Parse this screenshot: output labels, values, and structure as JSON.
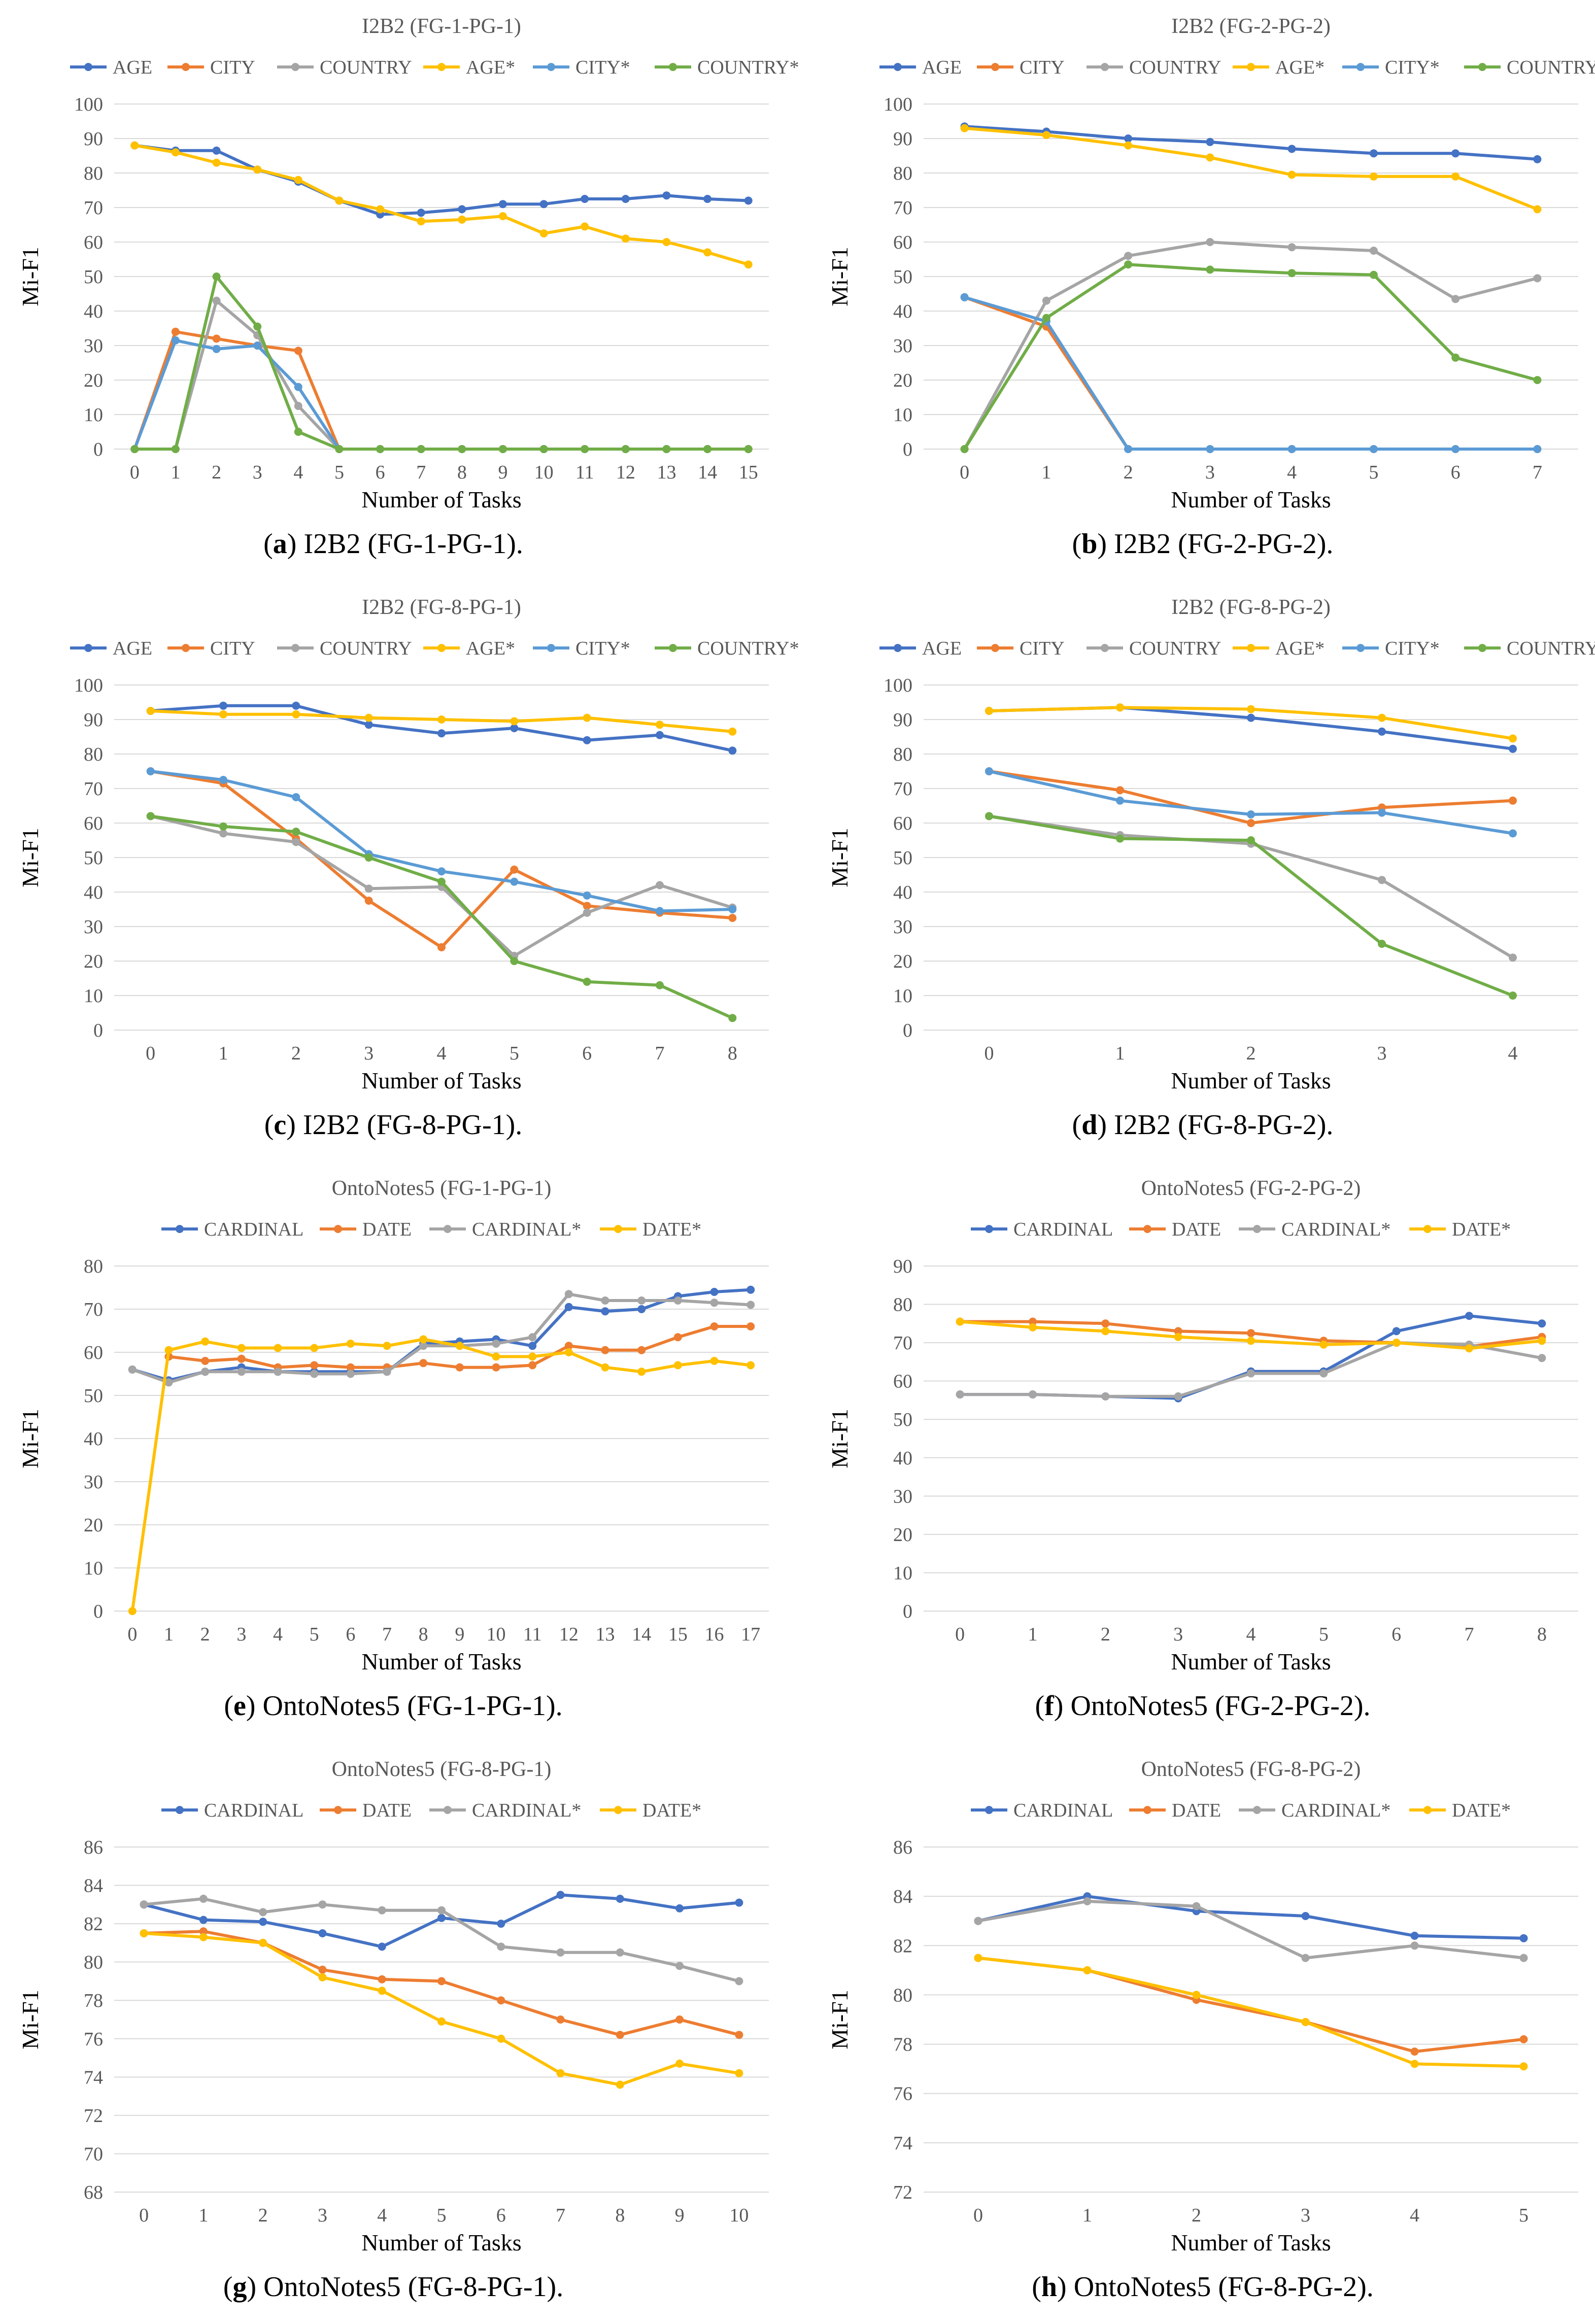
{
  "chart_data": [
    {
      "id": "a",
      "type": "line",
      "title": "I2B2 (FG-1-PG-1)",
      "caption_letter": "a",
      "caption_text": "I2B2 (FG-1-PG-1).",
      "xlabel": "Number of Tasks",
      "ylabel": "Mi-F1",
      "categories": [
        "0",
        "1",
        "2",
        "3",
        "4",
        "5",
        "6",
        "7",
        "8",
        "9",
        "10",
        "11",
        "12",
        "13",
        "14",
        "15"
      ],
      "ylim": [
        0,
        100
      ],
      "yticks": [
        0,
        10,
        20,
        30,
        40,
        50,
        60,
        70,
        80,
        90,
        100
      ],
      "legend_position": "top",
      "series": [
        {
          "name": "AGE",
          "color": "#4472c4",
          "values": [
            88,
            86.5,
            86.5,
            81,
            77.5,
            72,
            68,
            68.5,
            69.5,
            71,
            71,
            72.5,
            72.5,
            73.5,
            72.5,
            72
          ]
        },
        {
          "name": "CITY",
          "color": "#ed7d31",
          "values": [
            0,
            34,
            32,
            30,
            28.5,
            0,
            0,
            0,
            0,
            0,
            0,
            0,
            0,
            0,
            0,
            0
          ]
        },
        {
          "name": "COUNTRY",
          "color": "#a5a5a5",
          "values": [
            0,
            0,
            43,
            33,
            12.5,
            0,
            0,
            0,
            0,
            0,
            0,
            0,
            0,
            0,
            0,
            0
          ]
        },
        {
          "name": "AGE*",
          "color": "#ffc000",
          "values": [
            88,
            86,
            83,
            81,
            78,
            72,
            69.5,
            66,
            66.5,
            67.5,
            62.5,
            64.5,
            61,
            60,
            57,
            53.5
          ]
        },
        {
          "name": "CITY*",
          "color": "#5b9bd5",
          "values": [
            0,
            31.5,
            29,
            30,
            18,
            0,
            0,
            0,
            0,
            0,
            0,
            0,
            0,
            0,
            0,
            0
          ]
        },
        {
          "name": "COUNTRY*",
          "color": "#70ad47",
          "values": [
            0,
            0,
            50,
            35.5,
            5,
            0,
            0,
            0,
            0,
            0,
            0,
            0,
            0,
            0,
            0,
            0
          ]
        }
      ]
    },
    {
      "id": "b",
      "type": "line",
      "title": "I2B2 (FG-2-PG-2)",
      "caption_letter": "b",
      "caption_text": "I2B2 (FG-2-PG-2).",
      "xlabel": "Number of Tasks",
      "ylabel": "Mi-F1",
      "categories": [
        "0",
        "1",
        "2",
        "3",
        "4",
        "5",
        "6",
        "7"
      ],
      "ylim": [
        0,
        100
      ],
      "yticks": [
        0,
        10,
        20,
        30,
        40,
        50,
        60,
        70,
        80,
        90,
        100
      ],
      "legend_position": "top",
      "series": [
        {
          "name": "AGE",
          "color": "#4472c4",
          "values": [
            93.5,
            92,
            90,
            89,
            87,
            85.7,
            85.7,
            84
          ]
        },
        {
          "name": "CITY",
          "color": "#ed7d31",
          "values": [
            44,
            35.5,
            0,
            0,
            0,
            0,
            0,
            0
          ]
        },
        {
          "name": "COUNTRY",
          "color": "#a5a5a5",
          "values": [
            0,
            43,
            56,
            60,
            58.5,
            57.5,
            43.5,
            49.5
          ]
        },
        {
          "name": "AGE*",
          "color": "#ffc000",
          "values": [
            93,
            91,
            88,
            84.5,
            79.5,
            79,
            79,
            69.5
          ]
        },
        {
          "name": "CITY*",
          "color": "#5b9bd5",
          "values": [
            44,
            37,
            0,
            0,
            0,
            0,
            0,
            0
          ]
        },
        {
          "name": "COUNTRY*",
          "color": "#70ad47",
          "values": [
            0,
            38,
            53.5,
            52,
            51,
            50.5,
            26.5,
            20
          ]
        }
      ]
    },
    {
      "id": "c",
      "type": "line",
      "title": "I2B2 (FG-8-PG-1)",
      "caption_letter": "c",
      "caption_text": "I2B2 (FG-8-PG-1).",
      "xlabel": "Number of Tasks",
      "ylabel": "Mi-F1",
      "categories": [
        "0",
        "1",
        "2",
        "3",
        "4",
        "5",
        "6",
        "7",
        "8"
      ],
      "ylim": [
        0,
        100
      ],
      "yticks": [
        0,
        10,
        20,
        30,
        40,
        50,
        60,
        70,
        80,
        90,
        100
      ],
      "legend_position": "top",
      "series": [
        {
          "name": "AGE",
          "color": "#4472c4",
          "values": [
            92.5,
            94,
            94,
            88.5,
            86,
            87.5,
            84,
            85.5,
            81
          ]
        },
        {
          "name": "CITY",
          "color": "#ed7d31",
          "values": [
            75,
            71.5,
            55.5,
            37.5,
            24,
            46.5,
            36,
            34,
            32.5
          ]
        },
        {
          "name": "COUNTRY",
          "color": "#a5a5a5",
          "values": [
            62,
            57,
            54.5,
            41,
            41.5,
            21.5,
            34,
            42,
            35.5
          ]
        },
        {
          "name": "AGE*",
          "color": "#ffc000",
          "values": [
            92.5,
            91.5,
            91.5,
            90.5,
            90,
            89.5,
            90.5,
            88.5,
            86.5
          ]
        },
        {
          "name": "CITY*",
          "color": "#5b9bd5",
          "values": [
            75,
            72.5,
            67.5,
            51,
            46,
            43,
            39,
            34.5,
            35
          ]
        },
        {
          "name": "COUNTRY*",
          "color": "#70ad47",
          "values": [
            62,
            59,
            57.5,
            50,
            43,
            20,
            14,
            13,
            3.5
          ]
        }
      ]
    },
    {
      "id": "d",
      "type": "line",
      "title": "I2B2 (FG-8-PG-2)",
      "caption_letter": "d",
      "caption_text": "I2B2 (FG-8-PG-2).",
      "xlabel": "Number of Tasks",
      "ylabel": "Mi-F1",
      "categories": [
        "0",
        "1",
        "2",
        "3",
        "4"
      ],
      "ylim": [
        0,
        100
      ],
      "yticks": [
        0,
        10,
        20,
        30,
        40,
        50,
        60,
        70,
        80,
        90,
        100
      ],
      "legend_position": "top",
      "series": [
        {
          "name": "AGE",
          "color": "#4472c4",
          "values": [
            92.5,
            93.5,
            90.5,
            86.5,
            81.5
          ]
        },
        {
          "name": "CITY",
          "color": "#ed7d31",
          "values": [
            75,
            69.5,
            60,
            64.5,
            66.5
          ]
        },
        {
          "name": "COUNTRY",
          "color": "#a5a5a5",
          "values": [
            62,
            56.5,
            54,
            43.5,
            21
          ]
        },
        {
          "name": "AGE*",
          "color": "#ffc000",
          "values": [
            92.5,
            93.5,
            93,
            90.5,
            84.5
          ]
        },
        {
          "name": "CITY*",
          "color": "#5b9bd5",
          "values": [
            75,
            66.5,
            62.5,
            63,
            57
          ]
        },
        {
          "name": "COUNTRY*",
          "color": "#70ad47",
          "values": [
            62,
            55.5,
            55,
            25,
            10
          ]
        }
      ]
    },
    {
      "id": "e",
      "type": "line",
      "title": "OntoNotes5 (FG-1-PG-1)",
      "caption_letter": "e",
      "caption_text": "OntoNotes5 (FG-1-PG-1).",
      "xlabel": "Number of Tasks",
      "ylabel": "Mi-F1",
      "categories": [
        "0",
        "1",
        "2",
        "3",
        "4",
        "5",
        "6",
        "7",
        "8",
        "9",
        "10",
        "11",
        "12",
        "13",
        "14",
        "15",
        "16",
        "17"
      ],
      "ylim": [
        0,
        80
      ],
      "yticks": [
        0,
        10,
        20,
        30,
        40,
        50,
        60,
        70,
        80
      ],
      "legend_position": "top",
      "series": [
        {
          "name": "CARDINAL",
          "color": "#4472c4",
          "values": [
            56,
            53.5,
            55.5,
            56.5,
            55.5,
            55.5,
            55.5,
            55.5,
            62,
            62.5,
            63,
            61.5,
            70.5,
            69.5,
            70,
            73,
            74,
            74.5
          ]
        },
        {
          "name": "DATE",
          "color": "#ed7d31",
          "values": [
            null,
            59,
            58,
            58.5,
            56.5,
            57,
            56.5,
            56.5,
            57.5,
            56.5,
            56.5,
            57,
            61.5,
            60.5,
            60.5,
            63.5,
            66,
            66
          ]
        },
        {
          "name": "CARDINAL*",
          "color": "#a5a5a5",
          "values": [
            56,
            53,
            55.5,
            55.5,
            55.5,
            55,
            55,
            55.5,
            61.5,
            61.5,
            62,
            63.5,
            73.5,
            72,
            72,
            72,
            71.5,
            71
          ]
        },
        {
          "name": "DATE*",
          "color": "#ffc000",
          "values": [
            0,
            60.5,
            62.5,
            61,
            61,
            61,
            62,
            61.5,
            63,
            61.5,
            59,
            59,
            60,
            56.5,
            55.5,
            57,
            58,
            57
          ]
        }
      ]
    },
    {
      "id": "f",
      "type": "line",
      "title": "OntoNotes5 (FG-2-PG-2)",
      "caption_letter": "f",
      "caption_text": "OntoNotes5 (FG-2-PG-2).",
      "xlabel": "Number of Tasks",
      "ylabel": "Mi-F1",
      "categories": [
        "0",
        "1",
        "2",
        "3",
        "4",
        "5",
        "6",
        "7",
        "8"
      ],
      "ylim": [
        0,
        90
      ],
      "yticks": [
        0,
        10,
        20,
        30,
        40,
        50,
        60,
        70,
        80,
        90
      ],
      "legend_position": "top",
      "series": [
        {
          "name": "CARDINAL",
          "color": "#4472c4",
          "values": [
            56.5,
            56.5,
            56,
            55.5,
            62.5,
            62.5,
            73,
            77,
            75
          ]
        },
        {
          "name": "DATE",
          "color": "#ed7d31",
          "values": [
            75.5,
            75.5,
            75,
            73,
            72.5,
            70.5,
            70,
            69,
            71.5
          ]
        },
        {
          "name": "CARDINAL*",
          "color": "#a5a5a5",
          "values": [
            56.5,
            56.5,
            56,
            56,
            62,
            62,
            70,
            69.5,
            66
          ]
        },
        {
          "name": "DATE*",
          "color": "#ffc000",
          "values": [
            75.5,
            74,
            73,
            71.5,
            70.5,
            69.5,
            70,
            68.5,
            70.5
          ]
        }
      ]
    },
    {
      "id": "g",
      "type": "line",
      "title": "OntoNotes5 (FG-8-PG-1)",
      "caption_letter": "g",
      "caption_text": "OntoNotes5 (FG-8-PG-1).",
      "xlabel": "Number of Tasks",
      "ylabel": "Mi-F1",
      "categories": [
        "0",
        "1",
        "2",
        "3",
        "4",
        "5",
        "6",
        "7",
        "8",
        "9",
        "10"
      ],
      "ylim": [
        68,
        86
      ],
      "yticks": [
        68,
        70,
        72,
        74,
        76,
        78,
        80,
        82,
        84,
        86
      ],
      "legend_position": "top",
      "series": [
        {
          "name": "CARDINAL",
          "color": "#4472c4",
          "values": [
            83,
            82.2,
            82.1,
            81.5,
            80.8,
            82.3,
            82,
            83.5,
            83.3,
            82.8,
            83.1
          ]
        },
        {
          "name": "DATE",
          "color": "#ed7d31",
          "values": [
            81.5,
            81.6,
            81,
            79.6,
            79.1,
            79,
            78,
            77,
            76.2,
            77,
            76.2
          ]
        },
        {
          "name": "CARDINAL*",
          "color": "#a5a5a5",
          "values": [
            83,
            83.3,
            82.6,
            83,
            82.7,
            82.7,
            80.8,
            80.5,
            80.5,
            79.8,
            79
          ]
        },
        {
          "name": "DATE*",
          "color": "#ffc000",
          "values": [
            81.5,
            81.3,
            81,
            79.2,
            78.5,
            76.9,
            76,
            74.2,
            73.6,
            74.7,
            74.2
          ]
        }
      ]
    },
    {
      "id": "h",
      "type": "line",
      "title": "OntoNotes5 (FG-8-PG-2)",
      "caption_letter": "h",
      "caption_text": "OntoNotes5 (FG-8-PG-2).",
      "xlabel": "Number of Tasks",
      "ylabel": "Mi-F1",
      "categories": [
        "0",
        "1",
        "2",
        "3",
        "4",
        "5"
      ],
      "ylim": [
        72,
        86
      ],
      "yticks": [
        72,
        74,
        76,
        78,
        80,
        82,
        84,
        86
      ],
      "legend_position": "top",
      "series": [
        {
          "name": "CARDINAL",
          "color": "#4472c4",
          "values": [
            83,
            84,
            83.4,
            83.2,
            82.4,
            82.3
          ]
        },
        {
          "name": "DATE",
          "color": "#ed7d31",
          "values": [
            81.5,
            81,
            79.8,
            78.9,
            77.7,
            78.2
          ]
        },
        {
          "name": "CARDINAL*",
          "color": "#a5a5a5",
          "values": [
            83,
            83.8,
            83.6,
            81.5,
            82,
            81.5
          ]
        },
        {
          "name": "DATE*",
          "color": "#ffc000",
          "values": [
            81.5,
            81,
            80,
            78.9,
            77.2,
            77.1
          ]
        }
      ]
    }
  ]
}
